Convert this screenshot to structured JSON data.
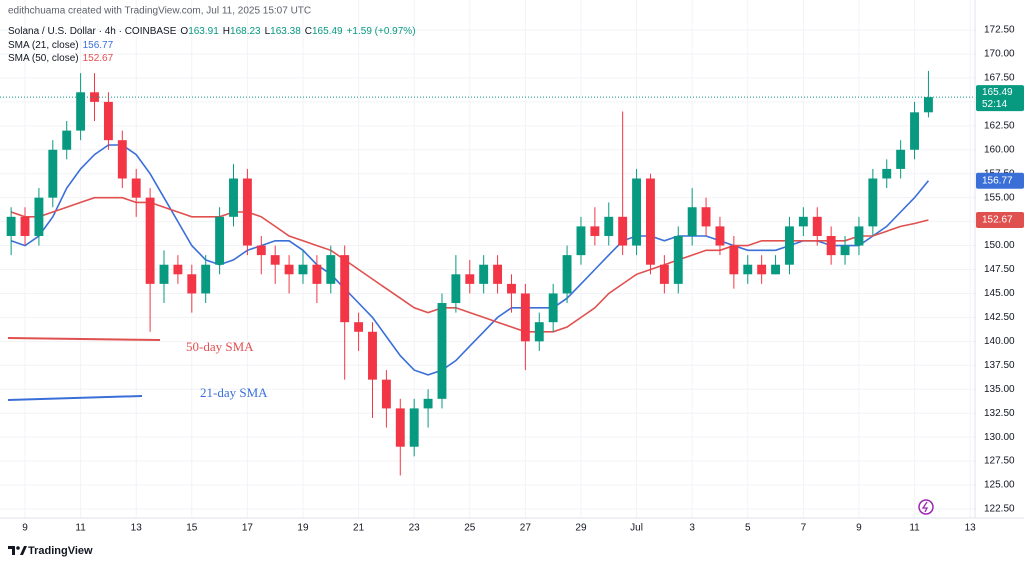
{
  "header": {
    "credit": "edithchuama created with TradingView.com, Jul 11, 2025 15:07 UTC"
  },
  "chart_data": {
    "type": "candlestick",
    "symbol": "Solana / U.S. Dollar · 4h · COINBASE",
    "ohlc_keys": [
      "O",
      "H",
      "L",
      "C"
    ],
    "change": "+1.59 (+0.97%)",
    "countdown": "52:14",
    "x": [
      -1,
      0,
      1,
      2,
      3,
      4,
      5,
      6,
      7,
      8,
      9,
      10,
      11,
      12,
      13,
      14,
      15,
      16,
      17,
      18,
      19,
      20,
      21,
      22,
      23,
      24,
      25,
      26,
      27,
      28,
      29,
      30,
      31,
      32,
      33,
      34,
      35,
      36,
      37,
      38,
      39,
      40,
      41,
      42,
      43,
      44,
      45,
      46,
      47,
      48,
      49,
      50,
      51,
      52,
      53,
      54,
      55,
      56,
      57,
      58,
      59,
      60,
      61,
      62,
      63,
      64,
      65
    ],
    "xlim": [
      -1.8,
      68.35
    ],
    "xticks": [
      {
        "value": 0,
        "label": "9"
      },
      {
        "value": 4,
        "label": "11"
      },
      {
        "value": 8,
        "label": "13"
      },
      {
        "value": 12,
        "label": "15"
      },
      {
        "value": 16,
        "label": "17"
      },
      {
        "value": 20,
        "label": "19"
      },
      {
        "value": 24,
        "label": "21"
      },
      {
        "value": 28,
        "label": "23"
      },
      {
        "value": 32,
        "label": "25"
      },
      {
        "value": 36,
        "label": "27"
      },
      {
        "value": 40,
        "label": "29"
      },
      {
        "value": 44,
        "label": "Jul"
      },
      {
        "value": 48,
        "label": "3"
      },
      {
        "value": 52,
        "label": "5"
      },
      {
        "value": 56,
        "label": "7"
      },
      {
        "value": 60,
        "label": "9"
      },
      {
        "value": 64,
        "label": "11"
      },
      {
        "value": 68,
        "label": "13"
      }
    ],
    "ylim": [
      121.35,
      174.59
    ],
    "yticks": [
      {
        "value": 122.5,
        "label": "122.50"
      },
      {
        "value": 125,
        "label": "125.00"
      },
      {
        "value": 127.5,
        "label": "127.50"
      },
      {
        "value": 130,
        "label": "130.00"
      },
      {
        "value": 132.5,
        "label": "132.50"
      },
      {
        "value": 135,
        "label": "135.00"
      },
      {
        "value": 137.5,
        "label": "137.50"
      },
      {
        "value": 140,
        "label": "140.00"
      },
      {
        "value": 142.5,
        "label": "142.50"
      },
      {
        "value": 145,
        "label": "145.00"
      },
      {
        "value": 147.5,
        "label": "147.50"
      },
      {
        "value": 150,
        "label": "150.00"
      },
      {
        "value": 152.5,
        "label": "152.50"
      },
      {
        "value": 155,
        "label": "155.00"
      },
      {
        "value": 157.5,
        "label": "157.50"
      },
      {
        "value": 160,
        "label": "160.00"
      },
      {
        "value": 162.5,
        "label": "162.50"
      },
      {
        "value": 165,
        "label": "165.00"
      },
      {
        "value": 167.5,
        "label": "167.50"
      },
      {
        "value": 170,
        "label": "170.00"
      },
      {
        "value": 172.5,
        "label": "172.50"
      }
    ],
    "grid": true,
    "up_color": "#089981",
    "down_color": "#f23645",
    "candles": {
      "open": [
        151,
        153,
        151,
        155,
        160,
        162,
        166,
        165,
        161,
        157,
        155,
        146,
        148,
        147,
        145,
        148,
        153,
        157,
        150,
        149,
        148,
        147,
        148,
        146,
        149,
        142,
        141,
        136,
        133,
        129,
        133,
        134,
        144,
        147,
        146,
        148,
        146,
        145,
        140,
        142,
        145,
        149,
        152,
        151,
        153,
        150,
        157,
        148,
        146,
        151,
        154,
        152,
        150,
        147,
        148,
        147,
        148,
        152,
        153,
        151,
        149,
        150,
        152,
        157,
        158,
        160,
        163.91
      ],
      "high": [
        154,
        154,
        156,
        161,
        163,
        168,
        168,
        166,
        162,
        158,
        156,
        149.5,
        149,
        148,
        149,
        154,
        158.5,
        158,
        151,
        150,
        149,
        149.5,
        149,
        150,
        150,
        143,
        142,
        137,
        134,
        134,
        135,
        145,
        149,
        148.5,
        149,
        149,
        147,
        146,
        143,
        146,
        150,
        153,
        154,
        154.5,
        164,
        158,
        157.5,
        149,
        152,
        156,
        155,
        153,
        151,
        149,
        149,
        149,
        153,
        154,
        154,
        152,
        151,
        153,
        158,
        159,
        161,
        165,
        168.23
      ],
      "low": [
        149,
        150,
        150,
        154,
        159,
        161,
        163,
        160,
        156,
        153,
        141,
        144,
        146,
        143,
        144,
        147,
        152,
        149,
        147,
        146,
        145,
        146,
        144,
        145,
        136,
        139,
        132,
        131,
        126,
        128,
        131,
        133,
        143,
        145,
        145,
        145,
        143,
        137,
        139,
        141,
        144,
        148,
        150,
        150,
        149,
        149,
        147,
        145,
        145,
        150,
        151,
        149,
        145.5,
        146,
        146,
        147,
        147,
        151,
        150,
        148,
        148,
        149,
        151,
        156,
        157,
        159,
        163.38
      ],
      "close": [
        153,
        151,
        155,
        160,
        162,
        166,
        165,
        161,
        157,
        155,
        146,
        148,
        147,
        145,
        148,
        153,
        157,
        150,
        149,
        148,
        147,
        148,
        146,
        149,
        142,
        141,
        136,
        133,
        129,
        133,
        134,
        144,
        147,
        146,
        148,
        146,
        145,
        140,
        142,
        145,
        149,
        152,
        151,
        153,
        150,
        157,
        148,
        146,
        151,
        154,
        152,
        150,
        147,
        148,
        147,
        148,
        152,
        153,
        151,
        149,
        150,
        152,
        157,
        158,
        160,
        163.91,
        165.49
      ]
    },
    "series": [
      {
        "name": "SMA (21, close)",
        "color": "#3a6fd8",
        "values": [
          150.5,
          150,
          151,
          153,
          156,
          158,
          159.5,
          160.5,
          160.5,
          159.5,
          157.5,
          155,
          152.5,
          150,
          148.5,
          148,
          148.5,
          149.5,
          150,
          150.5,
          150.5,
          149.5,
          148,
          147,
          145.5,
          144,
          142.5,
          140.5,
          138.5,
          137,
          136.5,
          137,
          138,
          139.5,
          141,
          142.5,
          143.5,
          143.5,
          143.5,
          143.5,
          144.5,
          146,
          147.5,
          149,
          150.5,
          151,
          151,
          150.5,
          151,
          151,
          151,
          150.5,
          150,
          149.5,
          149.5,
          149.5,
          150,
          150.5,
          150.5,
          150,
          150,
          150,
          151,
          152,
          153.5,
          155,
          156.77
        ]
      },
      {
        "name": "SMA (50, close)",
        "color": "#e0504f",
        "values": [
          153.5,
          153,
          153,
          153.5,
          154,
          154.5,
          155,
          155,
          155,
          154.5,
          154.5,
          154,
          153.5,
          153,
          153,
          153,
          153.5,
          153.5,
          153,
          152,
          151,
          150.5,
          150,
          149.5,
          148.5,
          147.5,
          146.5,
          145.5,
          144.5,
          143.5,
          143,
          143.5,
          143.5,
          143,
          142.5,
          142,
          141.5,
          141,
          141,
          141,
          141.5,
          142.5,
          143.5,
          145,
          146,
          147,
          147.5,
          148,
          148.5,
          149,
          149.5,
          149.5,
          150,
          150,
          150.5,
          150.5,
          150.5,
          150.5,
          150.5,
          150.5,
          150.5,
          151,
          151,
          151.5,
          152,
          152.3,
          152.67
        ]
      }
    ],
    "annotations": [
      "50-day SMA",
      "21-day SMA"
    ]
  },
  "footer": {
    "brand": "TradingView"
  }
}
